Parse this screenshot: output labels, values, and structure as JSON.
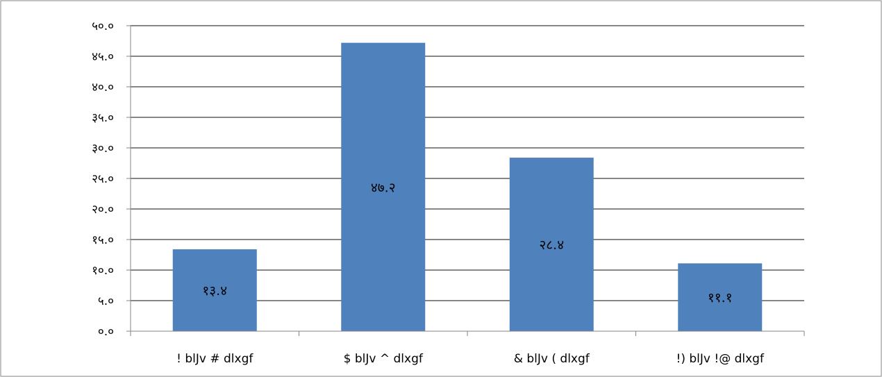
{
  "chart_data": {
    "type": "bar",
    "categories": [
      "! blJv # dlxgf",
      "$ blJv ^  dlxgf",
      "& blJv (  dlxgf",
      "!) blJv !@ dlxgf"
    ],
    "values": [
      13.4,
      47.2,
      28.4,
      11.1
    ],
    "data_labels": [
      "१३.४",
      "४७.२",
      "२८.४",
      "११.१"
    ],
    "y_ticks": [
      {
        "value": 0,
        "label": "०.०"
      },
      {
        "value": 5,
        "label": "५.०"
      },
      {
        "value": 10,
        "label": "१०.०"
      },
      {
        "value": 15,
        "label": "१५.०"
      },
      {
        "value": 20,
        "label": "२०.०"
      },
      {
        "value": 25,
        "label": "२५.०"
      },
      {
        "value": 30,
        "label": "३०.०"
      },
      {
        "value": 35,
        "label": "३५.०"
      },
      {
        "value": 40,
        "label": "४०.०"
      },
      {
        "value": 45,
        "label": "४५.०"
      },
      {
        "value": 50,
        "label": "५०.०"
      }
    ],
    "ylim": [
      0,
      50
    ],
    "grid": true,
    "title": "",
    "xlabel": "",
    "ylabel": "",
    "colors": {
      "bar": "#4f81bd",
      "grid": "#868686",
      "axis": "#868686",
      "border": "#868686"
    }
  }
}
